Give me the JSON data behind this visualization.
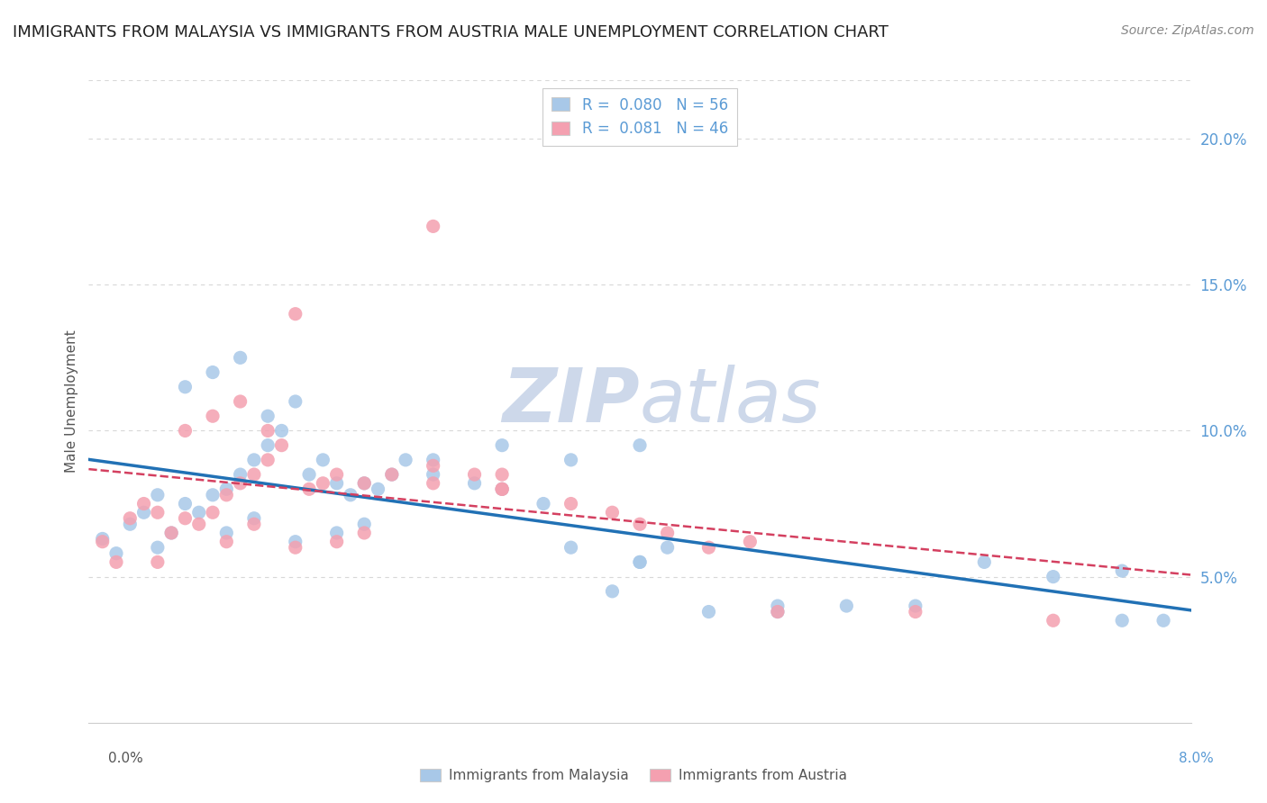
{
  "title": "IMMIGRANTS FROM MALAYSIA VS IMMIGRANTS FROM AUSTRIA MALE UNEMPLOYMENT CORRELATION CHART",
  "source": "Source: ZipAtlas.com",
  "ylabel": "Male Unemployment",
  "watermark": "ZIPat las",
  "series": [
    {
      "label": "Immigrants from Malaysia",
      "R": 0.08,
      "N": 56,
      "color": "#a8c8e8",
      "trend_color": "#2171b5",
      "trend_style": "solid",
      "points_x": [
        0.001,
        0.002,
        0.003,
        0.004,
        0.005,
        0.006,
        0.007,
        0.008,
        0.009,
        0.01,
        0.011,
        0.012,
        0.013,
        0.014,
        0.005,
        0.007,
        0.009,
        0.011,
        0.013,
        0.015,
        0.016,
        0.017,
        0.018,
        0.019,
        0.02,
        0.021,
        0.022,
        0.023,
        0.01,
        0.012,
        0.015,
        0.018,
        0.02,
        0.025,
        0.028,
        0.03,
        0.033,
        0.035,
        0.038,
        0.04,
        0.042,
        0.025,
        0.03,
        0.035,
        0.04,
        0.045,
        0.05,
        0.055,
        0.06,
        0.065,
        0.07,
        0.075,
        0.078,
        0.04,
        0.05,
        0.075
      ],
      "points_y": [
        0.063,
        0.058,
        0.068,
        0.072,
        0.078,
        0.065,
        0.075,
        0.072,
        0.078,
        0.08,
        0.085,
        0.09,
        0.095,
        0.1,
        0.06,
        0.115,
        0.12,
        0.125,
        0.105,
        0.11,
        0.085,
        0.09,
        0.082,
        0.078,
        0.082,
        0.08,
        0.085,
        0.09,
        0.065,
        0.07,
        0.062,
        0.065,
        0.068,
        0.085,
        0.082,
        0.08,
        0.075,
        0.06,
        0.045,
        0.055,
        0.06,
        0.09,
        0.095,
        0.09,
        0.055,
        0.038,
        0.038,
        0.04,
        0.04,
        0.055,
        0.05,
        0.052,
        0.035,
        0.095,
        0.04,
        0.035
      ]
    },
    {
      "label": "Immigrants from Austria",
      "R": 0.081,
      "N": 46,
      "color": "#f4a0b0",
      "trend_color": "#d44060",
      "trend_style": "dashed",
      "points_x": [
        0.001,
        0.002,
        0.003,
        0.004,
        0.005,
        0.006,
        0.007,
        0.008,
        0.009,
        0.01,
        0.011,
        0.012,
        0.013,
        0.014,
        0.005,
        0.007,
        0.009,
        0.011,
        0.013,
        0.015,
        0.016,
        0.017,
        0.018,
        0.02,
        0.022,
        0.025,
        0.028,
        0.03,
        0.01,
        0.012,
        0.015,
        0.018,
        0.02,
        0.025,
        0.03,
        0.035,
        0.038,
        0.04,
        0.042,
        0.045,
        0.048,
        0.025,
        0.03,
        0.05,
        0.06,
        0.07
      ],
      "points_y": [
        0.062,
        0.055,
        0.07,
        0.075,
        0.072,
        0.065,
        0.07,
        0.068,
        0.072,
        0.078,
        0.082,
        0.085,
        0.09,
        0.095,
        0.055,
        0.1,
        0.105,
        0.11,
        0.1,
        0.14,
        0.08,
        0.082,
        0.085,
        0.082,
        0.085,
        0.088,
        0.085,
        0.08,
        0.062,
        0.068,
        0.06,
        0.062,
        0.065,
        0.082,
        0.08,
        0.075,
        0.072,
        0.068,
        0.065,
        0.06,
        0.062,
        0.17,
        0.085,
        0.038,
        0.038,
        0.035
      ]
    }
  ],
  "xlim": [
    0.0,
    0.08
  ],
  "ylim": [
    0.0,
    0.22
  ],
  "yticks": [
    0.05,
    0.1,
    0.15,
    0.2
  ],
  "ytick_labels": [
    "5.0%",
    "10.0%",
    "15.0%",
    "20.0%"
  ],
  "background_color": "#ffffff",
  "grid_color": "#d8d8d8",
  "title_fontsize": 13,
  "watermark_color": "#cdd8ea",
  "watermark_fontsize": 60
}
